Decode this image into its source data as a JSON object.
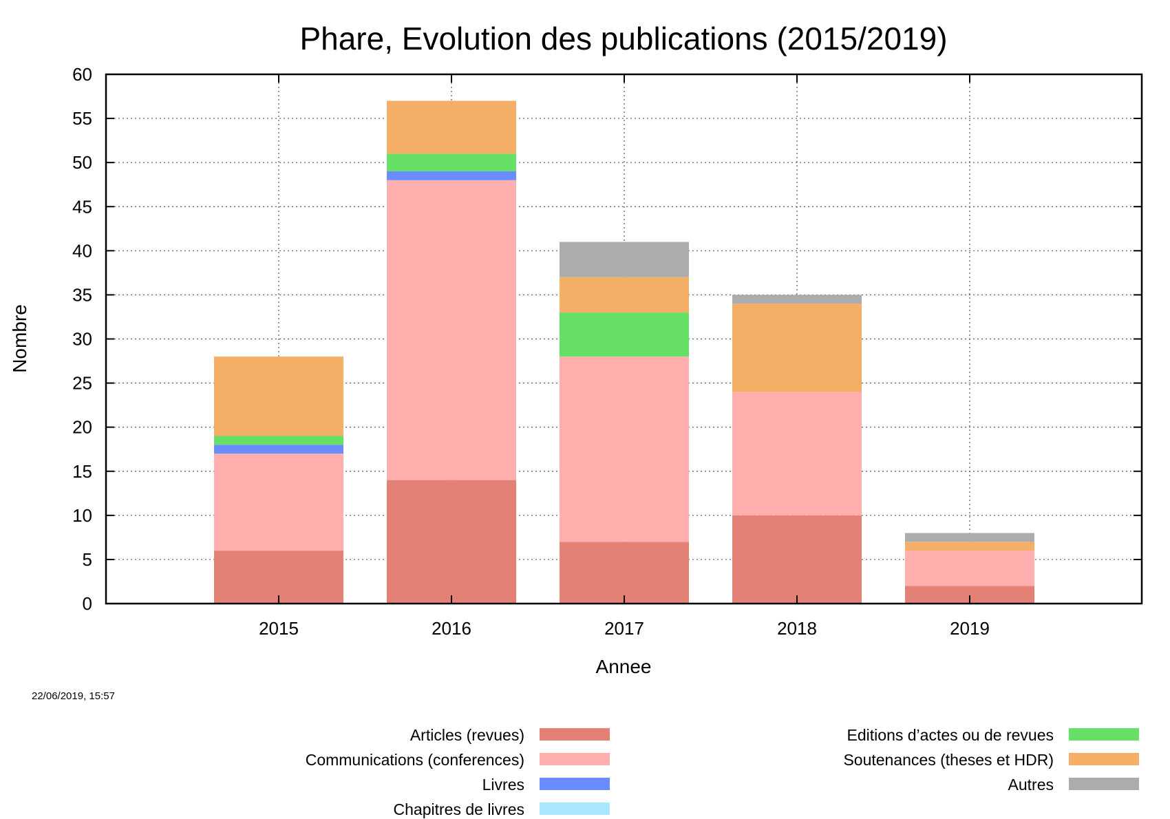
{
  "chart_data": {
    "type": "bar",
    "stacked": true,
    "title": "Phare, Evolution des publications (2015/2019)",
    "xlabel": "Annee",
    "ylabel": "Nombre",
    "categories": [
      "2015",
      "2016",
      "2017",
      "2018",
      "2019"
    ],
    "ylim": [
      0,
      60
    ],
    "yticks": [
      0,
      5,
      10,
      15,
      20,
      25,
      30,
      35,
      40,
      45,
      50,
      55,
      60
    ],
    "grid": true,
    "legend_position": "bottom",
    "series": [
      {
        "name": "Articles (revues)",
        "color": "#e38176",
        "values": [
          6,
          14,
          7,
          10,
          2
        ]
      },
      {
        "name": "Communications (conferences)",
        "color": "#ffb0ae",
        "values": [
          11,
          34,
          21,
          14,
          4
        ]
      },
      {
        "name": "Livres",
        "color": "#6b8cff",
        "values": [
          1,
          1,
          0,
          0,
          0
        ]
      },
      {
        "name": "Chapitres de livres",
        "color": "#a9e6ff",
        "values": [
          0,
          0,
          0,
          0,
          0
        ]
      },
      {
        "name": "Editions d’actes ou de revues",
        "color": "#66e066",
        "values": [
          1,
          2,
          5,
          0,
          0
        ]
      },
      {
        "name": "Soutenances (theses et HDR)",
        "color": "#f4ae66",
        "values": [
          9,
          6,
          4,
          10,
          1
        ]
      },
      {
        "name": "Autres",
        "color": "#acacac",
        "values": [
          0,
          0,
          4,
          1,
          1
        ]
      }
    ]
  },
  "timestamp": "22/06/2019, 15:57"
}
